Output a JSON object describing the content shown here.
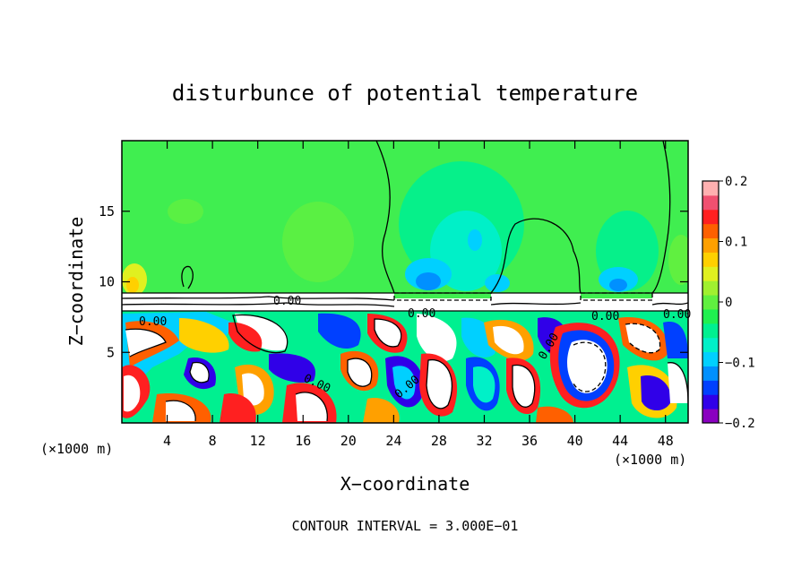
{
  "chart_data": {
    "type": "heatmap",
    "title": "disturbunce of potential temperature",
    "xlabel": "X−coordinate",
    "ylabel": "Z−coordinate",
    "x_unit_left": "(×1000 m)",
    "x_unit_right": "(×1000 m)",
    "footer": "CONTOUR INTERVAL = 3.000E−01",
    "xlim": [
      0,
      50
    ],
    "ylim": [
      0,
      20
    ],
    "x_ticks": [
      "4",
      "8",
      "12",
      "16",
      "20",
      "24",
      "28",
      "32",
      "36",
      "40",
      "44",
      "48"
    ],
    "x_tick_values": [
      4,
      8,
      12,
      16,
      20,
      24,
      28,
      32,
      36,
      40,
      44,
      48
    ],
    "y_ticks": [
      "5",
      "10",
      "15"
    ],
    "y_tick_values": [
      5,
      10,
      15
    ],
    "colorbar": {
      "min": -0.2,
      "max": 0.2,
      "tick_labels": [
        "0.2",
        "0.1",
        "0",
        "−0.1",
        "−0.2"
      ],
      "tick_values": [
        0.2,
        0.1,
        0,
        -0.1,
        -0.2
      ],
      "colors": [
        "#8a00c0",
        "#3000e8",
        "#0040ff",
        "#0090ff",
        "#00d0ff",
        "#00f0c8",
        "#00f090",
        "#20f050",
        "#60f040",
        "#a0f030",
        "#e0f020",
        "#ffd000",
        "#ffa000",
        "#ff6000",
        "#ff2020",
        "#f05070",
        "#ffb0b0"
      ]
    },
    "contour_labels": [
      "0.00",
      "0.00",
      "0.00",
      "0.00",
      "0.00",
      "0.00",
      "0.00",
      "0.00"
    ],
    "regions": {
      "upper_layer": {
        "z_range": [
          9.2,
          20
        ],
        "value": 0.0
      },
      "boundary_band": {
        "z_range": [
          8.2,
          9.2
        ],
        "value": 0.0
      },
      "lower_layer": {
        "z_range": [
          0,
          8.2
        ],
        "value_range": [
          -0.2,
          0.2
        ]
      }
    }
  }
}
